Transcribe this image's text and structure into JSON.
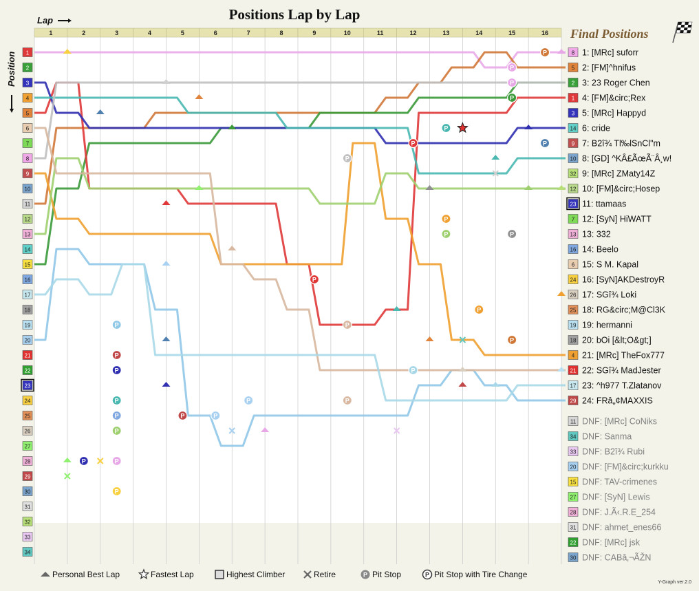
{
  "chart_data": {
    "type": "line",
    "title": "Positions Lap by Lap",
    "xlabel": "Lap",
    "ylabel": "Position",
    "laps": [
      1,
      2,
      3,
      4,
      5,
      6,
      7,
      8,
      9,
      10,
      11,
      12,
      13,
      14,
      15,
      16
    ],
    "start_positions": [
      1,
      2,
      3,
      4,
      5,
      6,
      7,
      8,
      9,
      10,
      11,
      12,
      13,
      14,
      15,
      16,
      17,
      18,
      19,
      20,
      21,
      22,
      23,
      24,
      25,
      26,
      27,
      28,
      29,
      30,
      31,
      32,
      33,
      34
    ],
    "start_grid": [
      {
        "pos": 1,
        "num": "1",
        "color": "#e0393b"
      },
      {
        "pos": 2,
        "num": "2",
        "color": "#3aa13a"
      },
      {
        "pos": 3,
        "num": "3",
        "color": "#3333bb"
      },
      {
        "pos": 4,
        "num": "4",
        "color": "#f0a030"
      },
      {
        "pos": 5,
        "num": "5",
        "color": "#e0843c"
      },
      {
        "pos": 6,
        "num": "6",
        "color": "#e8cdb0"
      },
      {
        "pos": 7,
        "num": "7",
        "color": "#7ed957"
      },
      {
        "pos": 8,
        "num": "8",
        "color": "#f0a8e8"
      },
      {
        "pos": 9,
        "num": "9",
        "color": "#c05050"
      },
      {
        "pos": 10,
        "num": "10",
        "color": "#7aa4cc"
      },
      {
        "pos": 11,
        "num": "11",
        "color": "#d6d6d6"
      },
      {
        "pos": 12,
        "num": "12",
        "color": "#b8d88a"
      },
      {
        "pos": 13,
        "num": "13",
        "color": "#f0b0d8"
      },
      {
        "pos": 14,
        "num": "14",
        "color": "#60d0c8"
      },
      {
        "pos": 15,
        "num": "15",
        "color": "#f8e040"
      },
      {
        "pos": 16,
        "num": "16",
        "color": "#80a8e0"
      },
      {
        "pos": 17,
        "num": "17",
        "color": "#c8e8f0"
      },
      {
        "pos": 18,
        "num": "18",
        "color": "#a0a0a0"
      },
      {
        "pos": 19,
        "num": "19",
        "color": "#b8e0f0"
      },
      {
        "pos": 20,
        "num": "20",
        "color": "#a8d0f0"
      },
      {
        "pos": 21,
        "num": "21",
        "color": "#e03030"
      },
      {
        "pos": 22,
        "num": "22",
        "color": "#30a030"
      },
      {
        "pos": 23,
        "num": "23",
        "color": "#3333bb"
      },
      {
        "pos": 24,
        "num": "24",
        "color": "#f8d040"
      },
      {
        "pos": 25,
        "num": "25",
        "color": "#e09058"
      },
      {
        "pos": 26,
        "num": "26",
        "color": "#d8cfc0"
      },
      {
        "pos": 27,
        "num": "27",
        "color": "#90f070"
      },
      {
        "pos": 28,
        "num": "28",
        "color": "#f0b0d8"
      },
      {
        "pos": 29,
        "num": "29",
        "color": "#c04848"
      },
      {
        "pos": 30,
        "num": "30",
        "color": "#7aa4cc"
      },
      {
        "pos": 31,
        "num": "31",
        "color": "#e0e0e0"
      },
      {
        "pos": 32,
        "num": "32",
        "color": "#b8e078"
      },
      {
        "pos": 33,
        "num": "33",
        "color": "#e8c8f0"
      },
      {
        "pos": 34,
        "num": "34",
        "color": "#60c8c0"
      }
    ],
    "series": [
      {
        "color": "#e8a8e8",
        "values": [
          1,
          1,
          1,
          1,
          1,
          1,
          1,
          1,
          1,
          1,
          1,
          1,
          1,
          1,
          2,
          1
        ]
      },
      {
        "color": "#d07838",
        "values": [
          11,
          6,
          6,
          6,
          5,
          5,
          5,
          5,
          5,
          5,
          5,
          4,
          3,
          2,
          1,
          2
        ]
      },
      {
        "color": "#3a9a3a",
        "values": [
          15,
          10,
          7,
          7,
          7,
          7,
          6,
          6,
          6,
          5,
          5,
          5,
          4,
          4,
          4,
          3
        ]
      },
      {
        "color": "#e03838",
        "values": [
          5,
          3,
          10,
          10,
          10,
          11,
          11,
          11,
          15,
          19,
          19,
          18,
          5,
          5,
          5,
          4
        ]
      },
      {
        "color": "#3030b0",
        "values": [
          3,
          5,
          6,
          6,
          6,
          6,
          6,
          6,
          6,
          6,
          6,
          7,
          7,
          7,
          7,
          6
        ]
      },
      {
        "color": "#48b8b0",
        "values": [
          4,
          4,
          4,
          4,
          4,
          5,
          5,
          5,
          6,
          6,
          6,
          6,
          9,
          9,
          9,
          8
        ]
      },
      {
        "color": "#f0a030",
        "values": [
          9,
          12,
          13,
          13,
          13,
          13,
          15,
          15,
          15,
          15,
          7,
          12,
          15,
          20,
          21,
          21
        ]
      },
      {
        "color": "#c0c0c0",
        "values": [
          8,
          3,
          3,
          3,
          3,
          3,
          3,
          3,
          3,
          3,
          3,
          3,
          3,
          3,
          3,
          3
        ]
      },
      {
        "color": "#9ed070",
        "values": [
          13,
          8,
          10,
          10,
          10,
          10,
          10,
          10,
          10,
          11,
          11,
          9,
          10,
          10,
          10,
          10
        ]
      },
      {
        "color": "#90c8e8",
        "values": [
          20,
          14,
          15,
          15,
          18,
          25,
          27,
          25,
          25,
          25,
          25,
          25,
          23,
          22,
          23,
          24
        ]
      },
      {
        "color": "#d8b8a0",
        "values": [
          6,
          9,
          9,
          9,
          9,
          9,
          15,
          16,
          18,
          22,
          22,
          22,
          22,
          22,
          22,
          22
        ]
      },
      {
        "color": "#a8d8e8",
        "values": [
          17,
          16,
          17,
          15,
          21,
          21,
          21,
          21,
          21,
          21,
          21,
          24,
          24,
          24,
          24,
          23
        ]
      }
    ],
    "final_positions": [
      {
        "num": "8",
        "color": "#f0a8e8",
        "name": "1: [MRc] suforr"
      },
      {
        "num": "5",
        "color": "#e0843c",
        "name": "2: [FM]^hnifus"
      },
      {
        "num": "2",
        "color": "#3aa13a",
        "name": "3: 23 Roger Chen"
      },
      {
        "num": "1",
        "color": "#e0393b",
        "name": "4: [FM]&circ;Rex"
      },
      {
        "num": "3",
        "color": "#3333bb",
        "name": "5: [MRc] Happyd"
      },
      {
        "num": "14",
        "color": "#60d0c8",
        "name": "6: cride"
      },
      {
        "num": "9",
        "color": "#c05050",
        "name": "7: B2î¾\u0003 Tl‰lSnCl\"m"
      },
      {
        "num": "10",
        "color": "#7aa4cc",
        "name": "8: [GD] ^KÂ£ÃœÃ¨Â¸w!"
      },
      {
        "num": "32",
        "color": "#b8e078",
        "name": "9: [MRc] ZMaty14Z"
      },
      {
        "num": "12",
        "color": "#b8d88a",
        "name": "10: [FM]&circ;Hosep"
      },
      {
        "num": "23",
        "color": "#3333bb",
        "name": "11: ttamaas",
        "highest_climber": true
      },
      {
        "num": "7",
        "color": "#7ed957",
        "name": "12: [SyN] HiWATT"
      },
      {
        "num": "13",
        "color": "#f0b0d8",
        "name": "13: 332"
      },
      {
        "num": "16",
        "color": "#80a8e0",
        "name": "14: Beelo"
      },
      {
        "num": "6",
        "color": "#e8cdb0",
        "name": "15: S M. Kapal"
      },
      {
        "num": "24",
        "color": "#f8d040",
        "name": "16: [SyN]AKDestroyR"
      },
      {
        "num": "26",
        "color": "#d8cfc0",
        "name": "17: SGî¾\u0003 Loki"
      },
      {
        "num": "25",
        "color": "#e09058",
        "name": "18: RG&circ;M@Cl3K"
      },
      {
        "num": "19",
        "color": "#b8e0f0",
        "name": "19: hermanni"
      },
      {
        "num": "18",
        "color": "#a0a0a0",
        "name": "20: bOi [&lt;O&gt;]"
      },
      {
        "num": "4",
        "color": "#f0a030",
        "name": "21: [MRc] TheFox777"
      },
      {
        "num": "21",
        "color": "#e03030",
        "name": "22: SGî¾\u0003 MadJester"
      },
      {
        "num": "17",
        "color": "#c8e8f0",
        "name": "23: ^h977 T.Zlatanov"
      },
      {
        "num": "29",
        "color": "#c04848",
        "name": "24: FRâ„¢MAXXIS"
      }
    ],
    "dnf": [
      {
        "num": "11",
        "color": "#d6d6d6",
        "name": "DNF: [MRc] CoNiks"
      },
      {
        "num": "34",
        "color": "#60c8c0",
        "name": "DNF: Sanma"
      },
      {
        "num": "33",
        "color": "#e8c8f0",
        "name": "DNF: B2î¾\u0003 Rubi"
      },
      {
        "num": "20",
        "color": "#a8d0f0",
        "name": "DNF: [FM]&circ;kurkku"
      },
      {
        "num": "15",
        "color": "#f8e040",
        "name": "DNF: TAV-crimenes"
      },
      {
        "num": "27",
        "color": "#90f070",
        "name": "DNF: [SyN] Lewis"
      },
      {
        "num": "28",
        "color": "#f0b0d8",
        "name": "DNF: J.Ã‹.R.E_254"
      },
      {
        "num": "31",
        "color": "#e0e0e0",
        "name": "DNF: ahmet_enes66"
      },
      {
        "num": "22",
        "color": "#30a030",
        "name": "DNF: [MRc] jsk"
      },
      {
        "num": "30",
        "color": "#7aa4cc",
        "name": "DNF: CABâ‚¬ÃŽN"
      }
    ],
    "pit_stops": [
      {
        "lap": 2,
        "pos": 28,
        "color": "#3030b0"
      },
      {
        "lap": 3,
        "pos": 19,
        "color": "#90c8e8"
      },
      {
        "lap": 3,
        "pos": 21,
        "color": "#c04848"
      },
      {
        "lap": 3,
        "pos": 22,
        "color": "#3030b0"
      },
      {
        "lap": 3,
        "pos": 24,
        "color": "#48b8b0"
      },
      {
        "lap": 3,
        "pos": 25,
        "color": "#80a8e0"
      },
      {
        "lap": 3,
        "pos": 26,
        "color": "#9ed070"
      },
      {
        "lap": 3,
        "pos": 28,
        "color": "#e8a8e8"
      },
      {
        "lap": 3,
        "pos": 30,
        "color": "#f8d040"
      },
      {
        "lap": 5,
        "pos": 25,
        "color": "#c04848"
      },
      {
        "lap": 6,
        "pos": 25,
        "color": "#a8d0f0"
      },
      {
        "lap": 7,
        "pos": 24,
        "color": "#a8d0f0"
      },
      {
        "lap": 9,
        "pos": 16,
        "color": "#e03838"
      },
      {
        "lap": 10,
        "pos": 8,
        "color": "#c0c0c0"
      },
      {
        "lap": 10,
        "pos": 19,
        "color": "#d8b8a0"
      },
      {
        "lap": 10,
        "pos": 24,
        "color": "#d8b8a0"
      },
      {
        "lap": 12,
        "pos": 7,
        "color": "#e03838"
      },
      {
        "lap": 12,
        "pos": 22,
        "color": "#a8d8e8"
      },
      {
        "lap": 13,
        "pos": 6,
        "color": "#48b8b0"
      },
      {
        "lap": 13,
        "pos": 12,
        "color": "#f0a030"
      },
      {
        "lap": 13,
        "pos": 13,
        "color": "#9ed070"
      },
      {
        "lap": 14,
        "pos": 18,
        "color": "#f0a030"
      },
      {
        "lap": 15,
        "pos": 2,
        "color": "#e8a8e8"
      },
      {
        "lap": 15,
        "pos": 3,
        "color": "#e8a8e8"
      },
      {
        "lap": 15,
        "pos": 4,
        "color": "#3a9a3a"
      },
      {
        "lap": 15,
        "pos": 13,
        "color": "#909090"
      },
      {
        "lap": 15,
        "pos": 20,
        "color": "#d07838"
      },
      {
        "lap": 16,
        "pos": 1,
        "color": "#d07838"
      },
      {
        "lap": 16,
        "pos": 7,
        "color": "#5080b0"
      }
    ],
    "personal_best": [
      {
        "lap": 2,
        "pos": 1,
        "color": "#f8d040"
      },
      {
        "lap": 2,
        "pos": 28,
        "color": "#90f070"
      },
      {
        "lap": 3,
        "pos": 5,
        "color": "#5080b0"
      },
      {
        "lap": 5,
        "pos": 3,
        "color": "#d0d0d0"
      },
      {
        "lap": 5,
        "pos": 11,
        "color": "#e03838"
      },
      {
        "lap": 5,
        "pos": 15,
        "color": "#a8d0f0"
      },
      {
        "lap": 5,
        "pos": 20,
        "color": "#5080b0"
      },
      {
        "lap": 5,
        "pos": 23,
        "color": "#3030b0"
      },
      {
        "lap": 6,
        "pos": 4,
        "color": "#e0843c"
      },
      {
        "lap": 6,
        "pos": 10,
        "color": "#90f070"
      },
      {
        "lap": 7,
        "pos": 6,
        "color": "#3a9a3a"
      },
      {
        "lap": 7,
        "pos": 14,
        "color": "#d8b8a0"
      },
      {
        "lap": 8,
        "pos": 26,
        "color": "#e8a8e8"
      },
      {
        "lap": 12,
        "pos": 18,
        "color": "#48b8b0"
      },
      {
        "lap": 13,
        "pos": 20,
        "color": "#e0843c"
      },
      {
        "lap": 13,
        "pos": 10,
        "color": "#909090"
      },
      {
        "lap": 14,
        "pos": 23,
        "color": "#c04848"
      },
      {
        "lap": 14,
        "pos": 22,
        "color": "#d8cfc0"
      },
      {
        "lap": 15,
        "pos": 8,
        "color": "#48b8b0"
      },
      {
        "lap": 15,
        "pos": 23,
        "color": "#a8d8e8"
      },
      {
        "lap": 16,
        "pos": 6,
        "color": "#3030b0"
      },
      {
        "lap": 16,
        "pos": 10,
        "color": "#9ed070"
      },
      {
        "lap": 17,
        "pos": 1,
        "color": "#e8a8e8"
      },
      {
        "lap": 17,
        "pos": 10,
        "color": "#b8e078"
      },
      {
        "lap": 17,
        "pos": 17,
        "color": "#f0a030"
      },
      {
        "lap": 17,
        "pos": 22,
        "color": "#b8e0f0"
      }
    ],
    "retires": [
      {
        "lap": 2,
        "pos": 29,
        "color": "#90f070"
      },
      {
        "lap": 3,
        "pos": 28,
        "color": "#f8d040"
      },
      {
        "lap": 7,
        "pos": 26,
        "color": "#a8d0f0"
      },
      {
        "lap": 12,
        "pos": 26,
        "color": "#e8c8f0"
      },
      {
        "lap": 15,
        "pos": 9,
        "color": "#d0d0d0"
      },
      {
        "lap": 14,
        "pos": 20,
        "color": "#60c8c0"
      }
    ],
    "fastest_lap": {
      "lap": 13,
      "pos": 6,
      "color": "#e03030"
    },
    "legend": {
      "personal_best": "Personal Best Lap",
      "fastest_lap": "Fastest Lap",
      "highest_climber": "Highest Climber",
      "retire": "Retire",
      "pit_stop": "Pit Stop",
      "pit_stop_tire": "Pit Stop with Tire Change"
    },
    "final_positions_title": "Final Positions",
    "version": "Y-Graph ver.2.0",
    "grid": true
  }
}
